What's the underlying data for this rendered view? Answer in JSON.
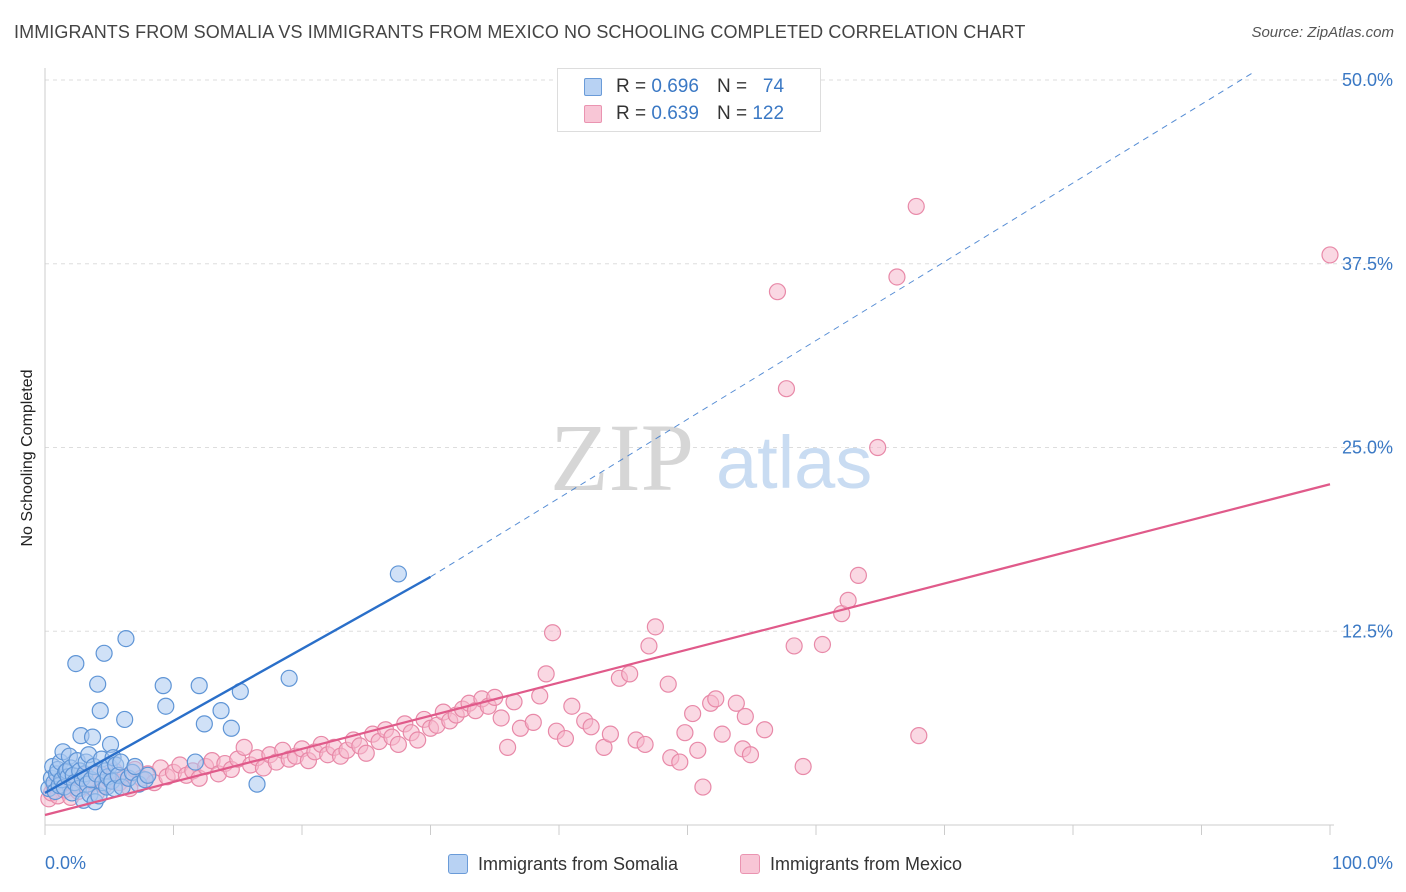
{
  "title": "IMMIGRANTS FROM SOMALIA VS IMMIGRANTS FROM MEXICO NO SCHOOLING COMPLETED CORRELATION CHART",
  "source": "Source: ZipAtlas.com",
  "watermark": {
    "zip": "ZIP",
    "atlas": "atlas"
  },
  "legend": {
    "rows": [
      {
        "r_label": "R =",
        "r_value": "0.696",
        "n_label": "N =",
        "n_value": "74"
      },
      {
        "r_label": "R =",
        "r_value": "0.639",
        "n_label": "N =",
        "n_value": "122"
      }
    ]
  },
  "colors": {
    "somalia_fill": "#a9c8f0",
    "somalia_stroke": "#5f95d6",
    "somalia_line": "#2a6fc9",
    "mexico_fill": "#f5b8cc",
    "mexico_stroke": "#e889a8",
    "mexico_line": "#e05a8a",
    "grid": "#dddddd",
    "tick_text": "#3a78c4"
  },
  "chart_data": {
    "type": "scatter",
    "title": "IMMIGRANTS FROM SOMALIA VS IMMIGRANTS FROM MEXICO NO SCHOOLING COMPLETED CORRELATION CHART",
    "xlabel": "",
    "ylabel": "No Schooling Completed",
    "xlim": [
      0,
      100
    ],
    "ylim": [
      0,
      50
    ],
    "x_tick_labels": [
      "0.0%",
      "100.0%"
    ],
    "y_ticks": [
      12.5,
      25.0,
      37.5,
      50.0
    ],
    "y_tick_labels": [
      "12.5%",
      "25.0%",
      "37.5%",
      "50.0%"
    ],
    "grid": true,
    "legend_placement": "bottom",
    "series": [
      {
        "name": "Immigrants from Somalia",
        "r": 0.696,
        "n": 74,
        "trend": {
          "x": [
            0,
            30
          ],
          "y": [
            1.5,
            16.2
          ],
          "extended_to": [
            94,
            50.5
          ]
        },
        "points": [
          [
            0.3,
            1.8
          ],
          [
            0.5,
            2.5
          ],
          [
            0.6,
            3.3
          ],
          [
            0.7,
            2.2
          ],
          [
            0.8,
            1.6
          ],
          [
            0.9,
            2.8
          ],
          [
            1.0,
            3.1
          ],
          [
            1.1,
            2.0
          ],
          [
            1.2,
            3.6
          ],
          [
            1.3,
            2.4
          ],
          [
            1.4,
            4.3
          ],
          [
            1.5,
            1.9
          ],
          [
            1.6,
            2.9
          ],
          [
            1.7,
            3.0
          ],
          [
            1.8,
            2.6
          ],
          [
            1.9,
            4.0
          ],
          [
            2.0,
            3.2
          ],
          [
            2.1,
            1.5
          ],
          [
            2.2,
            2.7
          ],
          [
            2.3,
            2.2
          ],
          [
            2.4,
            10.3
          ],
          [
            2.5,
            3.7
          ],
          [
            2.6,
            1.8
          ],
          [
            2.7,
            3.0
          ],
          [
            2.8,
            5.4
          ],
          [
            2.9,
            2.5
          ],
          [
            3.0,
            1.0
          ],
          [
            3.1,
            2.8
          ],
          [
            3.2,
            3.6
          ],
          [
            3.3,
            2.1
          ],
          [
            3.4,
            4.1
          ],
          [
            3.5,
            1.4
          ],
          [
            3.6,
            2.4
          ],
          [
            3.7,
            5.3
          ],
          [
            3.8,
            3.3
          ],
          [
            3.9,
            0.9
          ],
          [
            4.0,
            2.8
          ],
          [
            4.1,
            8.9
          ],
          [
            4.2,
            1.3
          ],
          [
            4.3,
            7.1
          ],
          [
            4.4,
            3.8
          ],
          [
            4.5,
            2.2
          ],
          [
            4.6,
            11.0
          ],
          [
            4.7,
            3.0
          ],
          [
            4.8,
            1.9
          ],
          [
            4.9,
            2.6
          ],
          [
            5.0,
            3.3
          ],
          [
            5.1,
            4.8
          ],
          [
            5.2,
            2.3
          ],
          [
            5.3,
            3.9
          ],
          [
            5.4,
            1.8
          ],
          [
            5.5,
            3.4
          ],
          [
            5.7,
            2.7
          ],
          [
            5.9,
            3.6
          ],
          [
            6.0,
            1.9
          ],
          [
            6.2,
            6.5
          ],
          [
            6.3,
            12.0
          ],
          [
            6.5,
            2.5
          ],
          [
            6.8,
            2.9
          ],
          [
            7.0,
            3.3
          ],
          [
            7.3,
            2.1
          ],
          [
            7.8,
            2.4
          ],
          [
            8.0,
            2.7
          ],
          [
            9.2,
            8.8
          ],
          [
            9.4,
            7.4
          ],
          [
            11.7,
            3.6
          ],
          [
            12.0,
            8.8
          ],
          [
            12.4,
            6.2
          ],
          [
            13.7,
            7.1
          ],
          [
            14.5,
            5.9
          ],
          [
            15.2,
            8.4
          ],
          [
            16.5,
            2.1
          ],
          [
            19.0,
            9.3
          ],
          [
            27.5,
            16.4
          ]
        ]
      },
      {
        "name": "Immigrants from Mexico",
        "r": 0.639,
        "n": 122,
        "trend": {
          "x": [
            0,
            100
          ],
          "y": [
            0,
            22.5
          ]
        },
        "points": [
          [
            0.3,
            1.1
          ],
          [
            0.5,
            1.5
          ],
          [
            0.7,
            2.0
          ],
          [
            1.0,
            1.3
          ],
          [
            1.3,
            2.2
          ],
          [
            1.5,
            1.7
          ],
          [
            1.8,
            2.5
          ],
          [
            2.0,
            1.2
          ],
          [
            2.3,
            2.1
          ],
          [
            2.6,
            1.6
          ],
          [
            3.0,
            2.7
          ],
          [
            3.3,
            1.9
          ],
          [
            3.6,
            2.3
          ],
          [
            4.0,
            1.5
          ],
          [
            4.3,
            2.8
          ],
          [
            4.6,
            2.0
          ],
          [
            5.0,
            2.4
          ],
          [
            5.4,
            3.0
          ],
          [
            5.8,
            2.2
          ],
          [
            6.2,
            2.6
          ],
          [
            6.6,
            1.8
          ],
          [
            7.0,
            3.1
          ],
          [
            7.5,
            2.5
          ],
          [
            8.0,
            2.8
          ],
          [
            8.5,
            2.2
          ],
          [
            9.0,
            3.2
          ],
          [
            9.5,
            2.6
          ],
          [
            10.0,
            2.9
          ],
          [
            10.5,
            3.4
          ],
          [
            11.0,
            2.7
          ],
          [
            11.5,
            3.0
          ],
          [
            12.0,
            2.5
          ],
          [
            12.5,
            3.3
          ],
          [
            13.0,
            3.7
          ],
          [
            13.5,
            2.8
          ],
          [
            14.0,
            3.5
          ],
          [
            14.5,
            3.1
          ],
          [
            15.0,
            3.8
          ],
          [
            15.5,
            4.6
          ],
          [
            16.0,
            3.4
          ],
          [
            16.5,
            3.9
          ],
          [
            17.0,
            3.2
          ],
          [
            17.5,
            4.1
          ],
          [
            18.0,
            3.6
          ],
          [
            18.5,
            4.4
          ],
          [
            19.0,
            3.8
          ],
          [
            19.5,
            4.0
          ],
          [
            20.0,
            4.5
          ],
          [
            20.5,
            3.7
          ],
          [
            21.0,
            4.3
          ],
          [
            21.5,
            4.8
          ],
          [
            22.0,
            4.1
          ],
          [
            22.5,
            4.6
          ],
          [
            23.0,
            4.0
          ],
          [
            23.5,
            4.4
          ],
          [
            24.0,
            5.1
          ],
          [
            24.5,
            4.7
          ],
          [
            25.0,
            4.2
          ],
          [
            25.5,
            5.5
          ],
          [
            26.0,
            5.0
          ],
          [
            26.5,
            5.8
          ],
          [
            27.0,
            5.3
          ],
          [
            27.5,
            4.8
          ],
          [
            28.0,
            6.2
          ],
          [
            28.5,
            5.6
          ],
          [
            29.0,
            5.1
          ],
          [
            29.5,
            6.5
          ],
          [
            30.0,
            5.9
          ],
          [
            30.5,
            6.1
          ],
          [
            31.0,
            7.0
          ],
          [
            31.5,
            6.4
          ],
          [
            32.0,
            6.8
          ],
          [
            32.5,
            7.2
          ],
          [
            33.0,
            7.6
          ],
          [
            33.5,
            7.1
          ],
          [
            34.0,
            7.9
          ],
          [
            34.5,
            7.4
          ],
          [
            35.0,
            8.0
          ],
          [
            35.5,
            6.6
          ],
          [
            36.0,
            4.6
          ],
          [
            36.5,
            7.7
          ],
          [
            37.0,
            5.9
          ],
          [
            38.0,
            6.3
          ],
          [
            38.5,
            8.1
          ],
          [
            39.0,
            9.6
          ],
          [
            39.5,
            12.4
          ],
          [
            39.8,
            5.7
          ],
          [
            40.5,
            5.2
          ],
          [
            41.0,
            7.4
          ],
          [
            42.0,
            6.4
          ],
          [
            42.5,
            6.0
          ],
          [
            43.5,
            4.6
          ],
          [
            44.0,
            5.5
          ],
          [
            44.7,
            9.3
          ],
          [
            45.5,
            9.6
          ],
          [
            46.0,
            5.1
          ],
          [
            46.7,
            4.8
          ],
          [
            47.0,
            11.5
          ],
          [
            47.5,
            12.8
          ],
          [
            48.5,
            8.9
          ],
          [
            48.7,
            3.9
          ],
          [
            49.4,
            3.6
          ],
          [
            49.8,
            5.6
          ],
          [
            50.4,
            6.9
          ],
          [
            50.8,
            4.4
          ],
          [
            51.2,
            1.9
          ],
          [
            51.8,
            7.6
          ],
          [
            52.2,
            7.9
          ],
          [
            52.7,
            5.5
          ],
          [
            53.8,
            7.6
          ],
          [
            54.3,
            4.5
          ],
          [
            54.5,
            6.7
          ],
          [
            54.9,
            4.1
          ],
          [
            56.0,
            5.8
          ],
          [
            57.0,
            35.6
          ],
          [
            57.7,
            29.0
          ],
          [
            58.3,
            11.5
          ],
          [
            59.0,
            3.3
          ],
          [
            60.5,
            11.6
          ],
          [
            62.0,
            13.7
          ],
          [
            62.5,
            14.6
          ],
          [
            63.3,
            16.3
          ],
          [
            64.8,
            25.0
          ],
          [
            66.3,
            36.6
          ],
          [
            67.8,
            41.4
          ],
          [
            68.0,
            5.4
          ],
          [
            100.0,
            38.1
          ]
        ]
      }
    ]
  },
  "axis": {
    "y_label": "No Schooling Completed",
    "x_min_label": "0.0%",
    "x_max_label": "100.0%"
  },
  "bottom_legend": [
    {
      "label": "Immigrants from Somalia"
    },
    {
      "label": "Immigrants from Mexico"
    }
  ]
}
